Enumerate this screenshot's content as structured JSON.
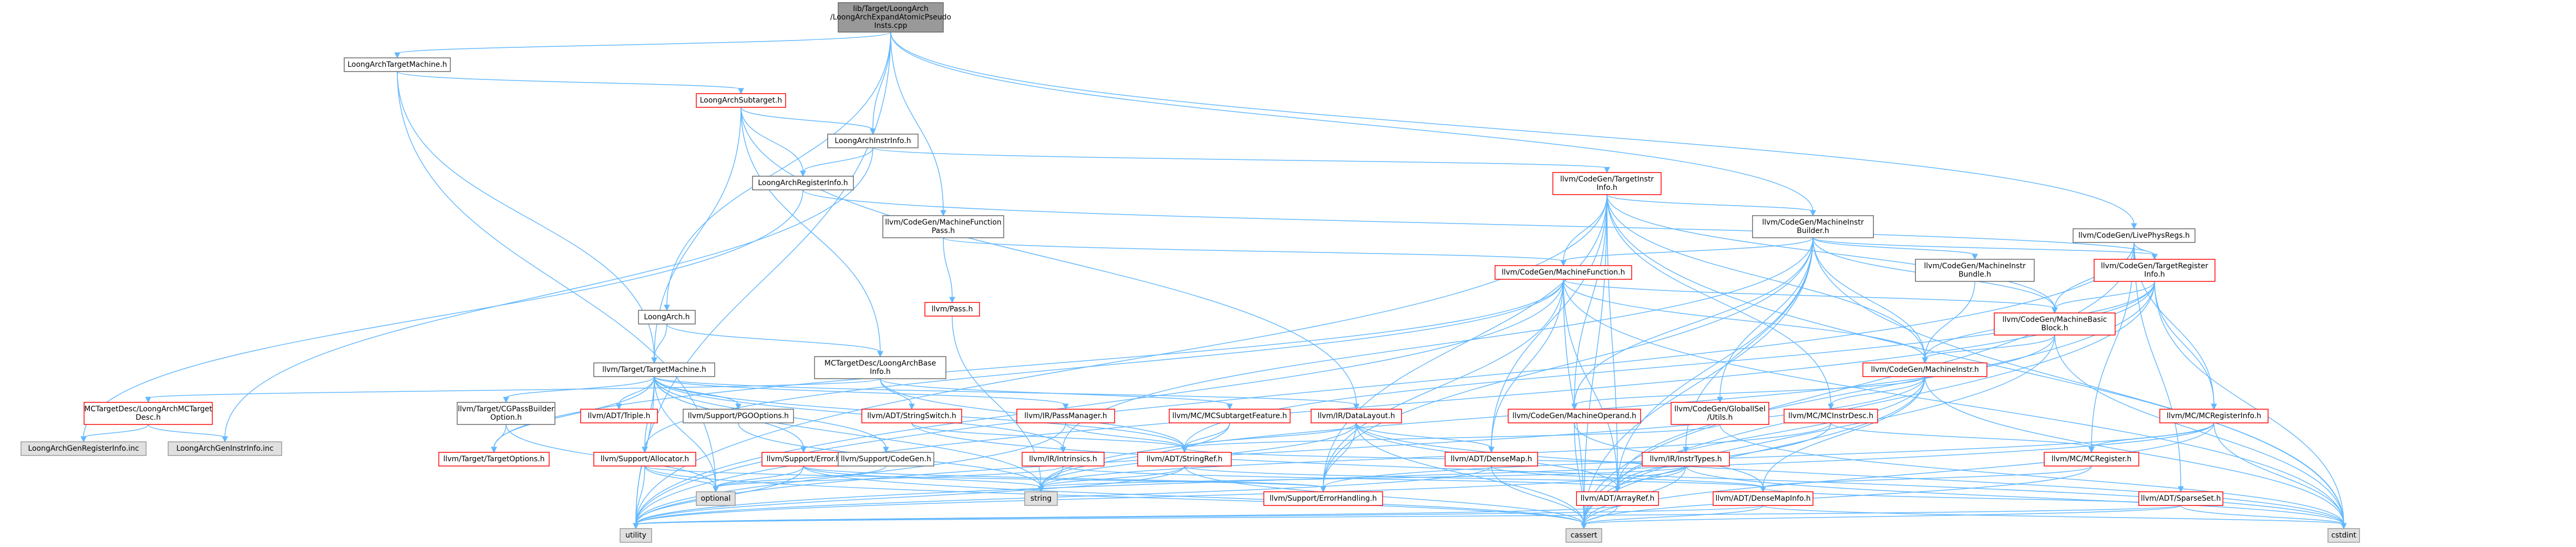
{
  "colors": {
    "root_fill": "#999999",
    "normal_fill": "#ffffff",
    "normal_stroke": "#666666",
    "red_stroke": "#ff0000",
    "gray_fill": "#e0e0e0",
    "gray_stroke": "#999999",
    "edge": "#63b8ff"
  },
  "nodes": [
    {
      "id": "root",
      "lines": [
        "lib/Target/LoongArch",
        "/LoongArchExpandAtomicPseudo",
        "Insts.cpp"
      ],
      "style": "root"
    },
    {
      "id": "targetmachine",
      "lines": [
        "LoongArchTargetMachine.h"
      ],
      "style": "normal"
    },
    {
      "id": "livephysregs",
      "lines": [
        "llvm/CodeGen/LivePhysRegs.h"
      ],
      "style": "normal"
    },
    {
      "id": "subtarget",
      "lines": [
        "LoongArchSubtarget.h"
      ],
      "style": "red"
    },
    {
      "id": "instrinfo",
      "lines": [
        "LoongArchInstrInfo.h"
      ],
      "style": "normal"
    },
    {
      "id": "targetinstrinfo",
      "lines": [
        "llvm/CodeGen/TargetInstr",
        "Info.h"
      ],
      "style": "red"
    },
    {
      "id": "registerinfo",
      "lines": [
        "LoongArchRegisterInfo.h"
      ],
      "style": "normal"
    },
    {
      "id": "mfpass",
      "lines": [
        "llvm/CodeGen/MachineFunction",
        "Pass.h"
      ],
      "style": "normal"
    },
    {
      "id": "mib",
      "lines": [
        "llvm/CodeGen/MachineInstr",
        "Builder.h"
      ],
      "style": "normal"
    },
    {
      "id": "targetreginfo",
      "lines": [
        "llvm/CodeGen/TargetRegister",
        "Info.h"
      ],
      "style": "red"
    },
    {
      "id": "machinefunction",
      "lines": [
        "llvm/CodeGen/MachineFunction.h"
      ],
      "style": "red"
    },
    {
      "id": "mibundle",
      "lines": [
        "llvm/CodeGen/MachineInstr",
        "Bundle.h"
      ],
      "style": "normal"
    },
    {
      "id": "pass",
      "lines": [
        "llvm/Pass.h"
      ],
      "style": "red"
    },
    {
      "id": "loongarch",
      "lines": [
        "LoongArch.h"
      ],
      "style": "normal"
    },
    {
      "id": "mbb",
      "lines": [
        "llvm/CodeGen/MachineBasic",
        "Block.h"
      ],
      "style": "red"
    },
    {
      "id": "mctargetdesc",
      "lines": [
        "MCTargetDesc/LoongArchBase",
        "Info.h"
      ],
      "style": "normal"
    },
    {
      "id": "machineinstr",
      "lines": [
        "llvm/CodeGen/MachineInstr.h"
      ],
      "style": "red"
    },
    {
      "id": "llvmtargetmachine",
      "lines": [
        "llvm/Target/TargetMachine.h"
      ],
      "style": "normal"
    },
    {
      "id": "mctdesc",
      "lines": [
        "MCTargetDesc/LoongArchMCTarget",
        "Desc.h"
      ],
      "style": "red"
    },
    {
      "id": "cgpassbuilder",
      "lines": [
        "llvm/Target/CGPassBuilder",
        "Option.h"
      ],
      "style": "normal"
    },
    {
      "id": "triple",
      "lines": [
        "llvm/ADT/Triple.h"
      ],
      "style": "red"
    },
    {
      "id": "pgooptions",
      "lines": [
        "llvm/Support/PGOOptions.h"
      ],
      "style": "normal"
    },
    {
      "id": "stringswitch",
      "lines": [
        "llvm/ADT/StringSwitch.h"
      ],
      "style": "red"
    },
    {
      "id": "passmanager",
      "lines": [
        "llvm/IR/PassManager.h"
      ],
      "style": "red"
    },
    {
      "id": "mcsubtarget",
      "lines": [
        "llvm/MC/MCSubtargetFeature.h"
      ],
      "style": "red"
    },
    {
      "id": "datalayout",
      "lines": [
        "llvm/IR/DataLayout.h"
      ],
      "style": "red"
    },
    {
      "id": "machineoperand",
      "lines": [
        "llvm/CodeGen/MachineOperand.h"
      ],
      "style": "red"
    },
    {
      "id": "globalisel",
      "lines": [
        "llvm/CodeGen/GlobalISel",
        "/Utils.h"
      ],
      "style": "red"
    },
    {
      "id": "mcinstrdesc",
      "lines": [
        "llvm/MC/MCInstrDesc.h"
      ],
      "style": "red"
    },
    {
      "id": "mcreginfo",
      "lines": [
        "llvm/MC/MCRegisterInfo.h"
      ],
      "style": "red"
    },
    {
      "id": "genregisterinfo",
      "lines": [
        "LoongArchGenRegisterInfo.inc"
      ],
      "style": "gray"
    },
    {
      "id": "geninstrinfo",
      "lines": [
        "LoongArchGenInstrInfo.inc"
      ],
      "style": "gray"
    },
    {
      "id": "targetoptions",
      "lines": [
        "llvm/Target/TargetOptions.h"
      ],
      "style": "red"
    },
    {
      "id": "allocator",
      "lines": [
        "llvm/Support/Allocator.h"
      ],
      "style": "red"
    },
    {
      "id": "error",
      "lines": [
        "llvm/Support/Error.h"
      ],
      "style": "red"
    },
    {
      "id": "codegen",
      "lines": [
        "llvm/Support/CodeGen.h"
      ],
      "style": "normal"
    },
    {
      "id": "stringref",
      "lines": [
        "llvm/ADT/StringRef.h"
      ],
      "style": "red"
    },
    {
      "id": "intrinsics",
      "lines": [
        "llvm/IR/Intrinsics.h"
      ],
      "style": "red"
    },
    {
      "id": "densemap",
      "lines": [
        "llvm/ADT/DenseMap.h"
      ],
      "style": "red"
    },
    {
      "id": "instrtypes",
      "lines": [
        "llvm/IR/InstrTypes.h"
      ],
      "style": "red"
    },
    {
      "id": "mcregister",
      "lines": [
        "llvm/MC/MCRegister.h"
      ],
      "style": "red"
    },
    {
      "id": "optional",
      "lines": [
        "optional"
      ],
      "style": "gray"
    },
    {
      "id": "string",
      "lines": [
        "string"
      ],
      "style": "gray"
    },
    {
      "id": "errorhandling",
      "lines": [
        "llvm/Support/ErrorHandling.h"
      ],
      "style": "red"
    },
    {
      "id": "arrayref",
      "lines": [
        "llvm/ADT/ArrayRef.h"
      ],
      "style": "red"
    },
    {
      "id": "densemapinfo",
      "lines": [
        "llvm/ADT/DenseMapInfo.h"
      ],
      "style": "red"
    },
    {
      "id": "sparseset",
      "lines": [
        "llvm/ADT/SparseSet.h"
      ],
      "style": "red"
    },
    {
      "id": "utility",
      "lines": [
        "utility"
      ],
      "style": "gray"
    },
    {
      "id": "cassert",
      "lines": [
        "cassert"
      ],
      "style": "gray"
    },
    {
      "id": "cstdint",
      "lines": [
        "cstdint"
      ],
      "style": "gray"
    }
  ],
  "edges": [
    [
      "root",
      "targetmachine"
    ],
    [
      "root",
      "livephysregs"
    ],
    [
      "root",
      "instrinfo"
    ],
    [
      "root",
      "mfpass"
    ],
    [
      "root",
      "mib"
    ],
    [
      "root",
      "loongarch"
    ],
    [
      "root",
      "utility"
    ],
    [
      "targetmachine",
      "subtarget"
    ],
    [
      "targetmachine",
      "llvmtargetmachine"
    ],
    [
      "targetmachine",
      "optional"
    ],
    [
      "subtarget",
      "instrinfo"
    ],
    [
      "subtarget",
      "registerinfo"
    ],
    [
      "subtarget",
      "llvmtargetmachine"
    ],
    [
      "subtarget",
      "mctargetdesc"
    ],
    [
      "subtarget",
      "datalayout"
    ],
    [
      "instrinfo",
      "registerinfo"
    ],
    [
      "instrinfo",
      "targetinstrinfo"
    ],
    [
      "instrinfo",
      "geninstrinfo"
    ],
    [
      "registerinfo",
      "genregisterinfo"
    ],
    [
      "registerinfo",
      "targetreginfo"
    ],
    [
      "targetinstrinfo",
      "mib"
    ],
    [
      "targetinstrinfo",
      "machinefunction"
    ],
    [
      "targetinstrinfo",
      "mbb"
    ],
    [
      "targetinstrinfo",
      "machineinstr"
    ],
    [
      "targetinstrinfo",
      "machineoperand"
    ],
    [
      "targetinstrinfo",
      "arrayref"
    ],
    [
      "targetinstrinfo",
      "densemap"
    ],
    [
      "targetinstrinfo",
      "cstdint"
    ],
    [
      "targetinstrinfo",
      "utility"
    ],
    [
      "targetinstrinfo",
      "cassert"
    ],
    [
      "targetinstrinfo",
      "errorhandling"
    ],
    [
      "targetinstrinfo",
      "mcinstrdesc"
    ],
    [
      "mfpass",
      "machinefunction"
    ],
    [
      "mfpass",
      "pass"
    ],
    [
      "mib",
      "machinefunction"
    ],
    [
      "mib",
      "mibundle"
    ],
    [
      "mib",
      "mbb"
    ],
    [
      "mib",
      "machineinstr"
    ],
    [
      "mib",
      "machineoperand"
    ],
    [
      "mib",
      "globalisel"
    ],
    [
      "mib",
      "intrinsics"
    ],
    [
      "mib",
      "instrtypes"
    ],
    [
      "mib",
      "errorhandling"
    ],
    [
      "mib",
      "cassert"
    ],
    [
      "mib",
      "cstdint"
    ],
    [
      "mib",
      "arrayref"
    ],
    [
      "mib",
      "targetreginfo"
    ],
    [
      "livephysregs",
      "targetreginfo"
    ],
    [
      "livephysregs",
      "mbb"
    ],
    [
      "livephysregs",
      "mcreginfo"
    ],
    [
      "livephysregs",
      "mcregister"
    ],
    [
      "livephysregs",
      "sparseset"
    ],
    [
      "livephysregs",
      "cassert"
    ],
    [
      "livephysregs",
      "utility"
    ],
    [
      "targetreginfo",
      "mbb"
    ],
    [
      "targetreginfo",
      "machineinstr"
    ],
    [
      "targetreginfo",
      "mcreginfo"
    ],
    [
      "targetreginfo",
      "arrayref"
    ],
    [
      "targetreginfo",
      "stringref"
    ],
    [
      "targetreginfo",
      "cassert"
    ],
    [
      "targetreginfo",
      "cstdint"
    ],
    [
      "targetreginfo",
      "utility"
    ],
    [
      "machinefunction",
      "mbb"
    ],
    [
      "machinefunction",
      "machineinstr"
    ],
    [
      "machinefunction",
      "densemap"
    ],
    [
      "machinefunction",
      "arrayref"
    ],
    [
      "machinefunction",
      "allocator"
    ],
    [
      "machinefunction",
      "utility"
    ],
    [
      "machinefunction",
      "cassert"
    ],
    [
      "machinefunction",
      "cstdint"
    ],
    [
      "machinefunction",
      "errorhandling"
    ],
    [
      "machinefunction",
      "targetoptions"
    ],
    [
      "mibundle",
      "machineinstr"
    ],
    [
      "pass",
      "string"
    ],
    [
      "loongarch",
      "mctargetdesc"
    ],
    [
      "loongarch",
      "llvmtargetmachine"
    ],
    [
      "mbb",
      "machineinstr"
    ],
    [
      "mbb",
      "cassert"
    ],
    [
      "mbb",
      "cstdint"
    ],
    [
      "mbb",
      "string"
    ],
    [
      "mctargetdesc",
      "stringswitch"
    ],
    [
      "mctargetdesc",
      "mcsubtarget"
    ],
    [
      "mctargetdesc",
      "stringref"
    ],
    [
      "mctargetdesc",
      "mctdesc"
    ],
    [
      "machineinstr",
      "machineoperand"
    ],
    [
      "machineinstr",
      "mcinstrdesc"
    ],
    [
      "machineinstr",
      "arrayref"
    ],
    [
      "machineinstr",
      "cassert"
    ],
    [
      "machineinstr",
      "cstdint"
    ],
    [
      "machineinstr",
      "utility"
    ],
    [
      "machineinstr",
      "densemapinfo"
    ],
    [
      "llvmtargetmachine",
      "cgpassbuilder"
    ],
    [
      "llvmtargetmachine",
      "triple"
    ],
    [
      "llvmtargetmachine",
      "pgooptions"
    ],
    [
      "llvmtargetmachine",
      "passmanager"
    ],
    [
      "llvmtargetmachine",
      "datalayout"
    ],
    [
      "llvmtargetmachine",
      "allocator"
    ],
    [
      "llvmtargetmachine",
      "error"
    ],
    [
      "llvmtargetmachine",
      "codegen"
    ],
    [
      "llvmtargetmachine",
      "stringref"
    ],
    [
      "llvmtargetmachine",
      "targetoptions"
    ],
    [
      "llvmtargetmachine",
      "optional"
    ],
    [
      "llvmtargetmachine",
      "string"
    ],
    [
      "llvmtargetmachine",
      "utility"
    ],
    [
      "llvmtargetmachine",
      "intrinsics"
    ],
    [
      "mctdesc",
      "genregisterinfo"
    ],
    [
      "mctdesc",
      "geninstrinfo"
    ],
    [
      "cgpassbuilder",
      "targetoptions"
    ],
    [
      "cgpassbuilder",
      "optional"
    ],
    [
      "pgooptions",
      "string"
    ],
    [
      "stringswitch",
      "stringref"
    ],
    [
      "stringswitch",
      "cstdint"
    ],
    [
      "passmanager",
      "stringref"
    ],
    [
      "passmanager",
      "utility"
    ],
    [
      "mcsubtarget",
      "stringref"
    ],
    [
      "mcsubtarget",
      "string"
    ],
    [
      "datalayout",
      "stringref"
    ],
    [
      "datalayout",
      "arrayref"
    ],
    [
      "datalayout",
      "densemap"
    ],
    [
      "datalayout",
      "errorhandling"
    ],
    [
      "datalayout",
      "cassert"
    ],
    [
      "datalayout",
      "cstdint"
    ],
    [
      "datalayout",
      "string"
    ],
    [
      "machineoperand",
      "densemapinfo"
    ],
    [
      "machineoperand",
      "cassert"
    ],
    [
      "globalisel",
      "stringref"
    ],
    [
      "globalisel",
      "cstdint"
    ],
    [
      "mcinstrdesc",
      "mcregister"
    ],
    [
      "mcinstrdesc",
      "arrayref"
    ],
    [
      "mcinstrdesc",
      "string"
    ],
    [
      "mcreginfo",
      "mcregister"
    ],
    [
      "mcreginfo",
      "errorhandling"
    ],
    [
      "mcreginfo",
      "cassert"
    ],
    [
      "mcreginfo",
      "cstdint"
    ],
    [
      "mcreginfo",
      "utility"
    ],
    [
      "allocator",
      "errorhandling"
    ],
    [
      "allocator",
      "cassert"
    ],
    [
      "allocator",
      "utility"
    ],
    [
      "allocator",
      "optional"
    ],
    [
      "error",
      "errorhandling"
    ],
    [
      "error",
      "string"
    ],
    [
      "error",
      "utility"
    ],
    [
      "error",
      "optional"
    ],
    [
      "error",
      "cassert"
    ],
    [
      "codegen",
      "optional"
    ],
    [
      "stringref",
      "densemapinfo"
    ],
    [
      "stringref",
      "string"
    ],
    [
      "stringref",
      "utility"
    ],
    [
      "stringref",
      "cassert"
    ],
    [
      "intrinsics",
      "string"
    ],
    [
      "intrinsics",
      "optional"
    ],
    [
      "intrinsics",
      "arrayref"
    ],
    [
      "densemap",
      "densemapinfo"
    ],
    [
      "densemap",
      "cassert"
    ],
    [
      "densemap",
      "utility"
    ],
    [
      "instrtypes",
      "arrayref"
    ],
    [
      "instrtypes",
      "stringref"
    ],
    [
      "instrtypes",
      "cassert"
    ],
    [
      "instrtypes",
      "cstdint"
    ],
    [
      "instrtypes",
      "string"
    ],
    [
      "instrtypes",
      "utility"
    ],
    [
      "mcregister",
      "densemapinfo"
    ],
    [
      "mcregister",
      "cassert"
    ],
    [
      "arrayref",
      "cassert"
    ],
    [
      "arrayref",
      "utility"
    ],
    [
      "densemapinfo",
      "cassert"
    ],
    [
      "densemapinfo",
      "utility"
    ],
    [
      "densemapinfo",
      "cstdint"
    ],
    [
      "sparseset",
      "densemapinfo"
    ],
    [
      "sparseset",
      "cassert"
    ],
    [
      "sparseset",
      "cstdint"
    ],
    [
      "sparseset",
      "utility"
    ]
  ]
}
